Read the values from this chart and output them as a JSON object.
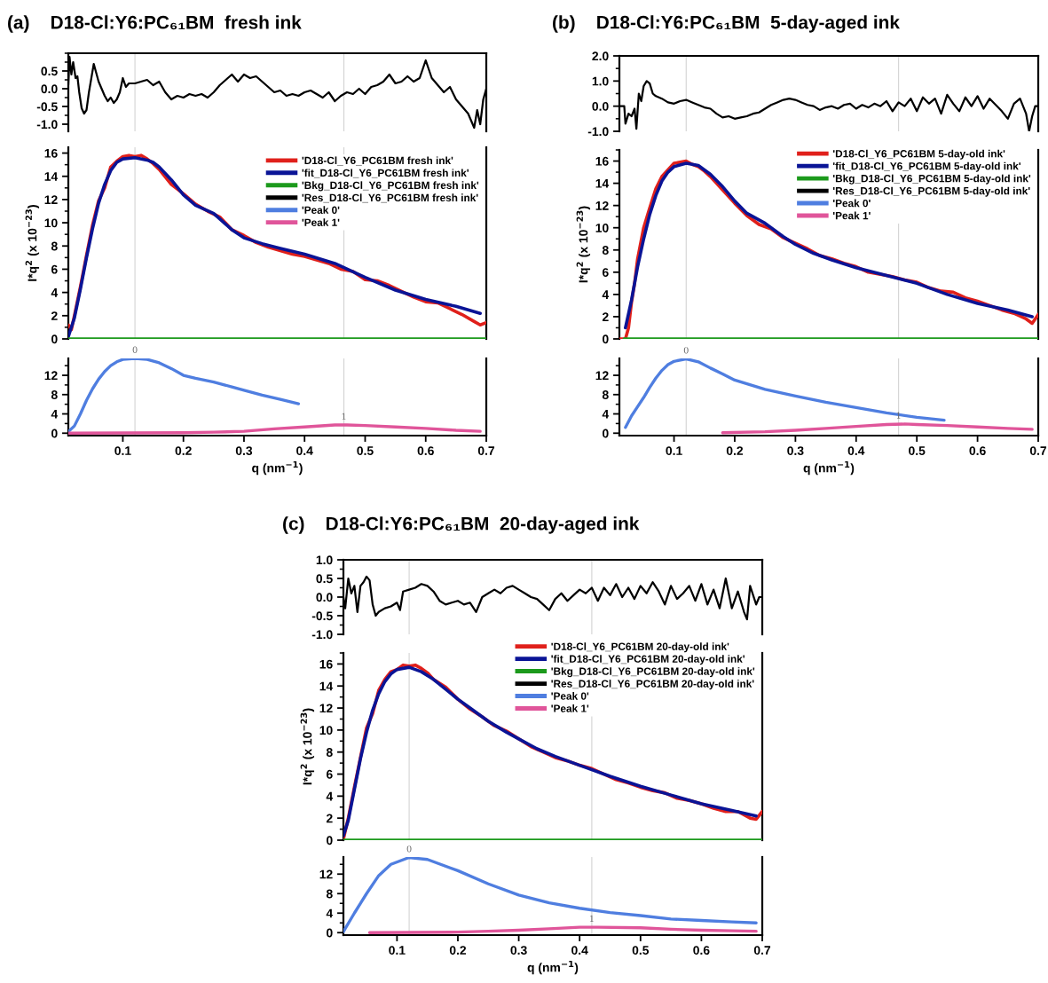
{
  "chart_data": [
    {
      "type": "line",
      "title": "(a)    D18-Cl:Y6:PC₆₁BM  fresh ink",
      "legend": "bottom right",
      "xlim": [
        0.01,
        0.7
      ],
      "ylim": [
        -1.2,
        1.0
      ],
      "yticks": [
        {
          "value": -1.0,
          "label": "-1.0"
        },
        {
          "value": -0.5,
          "label": "-0.5"
        },
        {
          "value": 0,
          "label": "0.0"
        },
        {
          "value": 0.5,
          "label": "0.5"
        }
      ],
      "tick_labels": "y",
      "grid": false,
      "ref_lines": [
        {
          "axis": "x",
          "value": 0.12,
          "color": "#cccccc"
        },
        {
          "axis": "x",
          "value": 0.465,
          "color": "#cccccc"
        }
      ],
      "series": [
        {
          "name": "'Res_D18-Cl_Y6_PC61BM fresh ink'",
          "color": "#000000",
          "x": [
            0.01,
            0.012,
            0.015,
            0.018,
            0.022,
            0.025,
            0.028,
            0.032,
            0.036,
            0.04,
            0.044,
            0.048,
            0.052,
            0.056,
            0.06,
            0.065,
            0.07,
            0.075,
            0.08,
            0.085,
            0.09,
            0.095,
            0.1,
            0.105,
            0.11,
            0.12,
            0.13,
            0.14,
            0.15,
            0.16,
            0.17,
            0.18,
            0.19,
            0.2,
            0.21,
            0.22,
            0.23,
            0.24,
            0.25,
            0.26,
            0.27,
            0.28,
            0.29,
            0.3,
            0.31,
            0.32,
            0.33,
            0.34,
            0.35,
            0.36,
            0.37,
            0.38,
            0.39,
            0.4,
            0.41,
            0.42,
            0.43,
            0.44,
            0.45,
            0.46,
            0.47,
            0.48,
            0.49,
            0.5,
            0.51,
            0.52,
            0.53,
            0.54,
            0.55,
            0.56,
            0.57,
            0.58,
            0.59,
            0.6,
            0.61,
            0.62,
            0.63,
            0.64,
            0.65,
            0.66,
            0.67,
            0.68,
            0.685,
            0.69,
            0.695,
            0.7
          ],
          "values": [
            0.1,
            0.9,
            0.4,
            0.75,
            0.3,
            0.35,
            -0.1,
            -0.55,
            -0.7,
            -0.6,
            -0.1,
            0.3,
            0.7,
            0.45,
            0.2,
            0.0,
            -0.2,
            -0.35,
            -0.25,
            -0.4,
            -0.3,
            -0.1,
            0.3,
            0.05,
            0.15,
            0.15,
            0.2,
            0.25,
            0.1,
            0.2,
            -0.1,
            -0.3,
            -0.2,
            -0.25,
            -0.15,
            -0.2,
            -0.15,
            -0.25,
            -0.1,
            0.1,
            0.25,
            0.4,
            0.2,
            0.4,
            0.3,
            0.35,
            0.2,
            0.05,
            -0.1,
            -0.05,
            -0.2,
            -0.15,
            -0.2,
            -0.1,
            -0.05,
            -0.15,
            -0.25,
            -0.1,
            -0.35,
            -0.2,
            -0.1,
            -0.15,
            0.0,
            -0.15,
            0.05,
            0.1,
            0.2,
            0.4,
            0.15,
            0.2,
            0.35,
            0.2,
            0.3,
            0.8,
            0.3,
            0.1,
            -0.1,
            0.05,
            -0.3,
            -0.5,
            -0.7,
            -1.1,
            -0.6,
            -1.0,
            -0.3,
            0.0
          ]
        }
      ]
    },
    {
      "type": "line",
      "ylabel": "I*q$^{2}$ (x 10$^{−23}$)",
      "xlim": [
        0.01,
        0.7
      ],
      "ylim": [
        0,
        16.5
      ],
      "yticks": [
        0,
        2,
        4,
        6,
        8,
        10,
        12,
        14,
        16
      ],
      "tick_labels": "y",
      "grid": false,
      "legend": "top right",
      "ref_lines": [
        {
          "axis": "x",
          "value": 0.12,
          "color": "#cccccc"
        },
        {
          "axis": "x",
          "value": 0.465,
          "color": "#cccccc"
        }
      ],
      "series": [
        {
          "name": "'D18-Cl_Y6_PC61BM fresh ink'",
          "color": "#e0201b",
          "x": [
            0.01,
            0.015,
            0.02,
            0.03,
            0.04,
            0.05,
            0.06,
            0.07,
            0.08,
            0.09,
            0.1,
            0.11,
            0.12,
            0.13,
            0.14,
            0.15,
            0.16,
            0.18,
            0.2,
            0.22,
            0.24,
            0.26,
            0.28,
            0.3,
            0.32,
            0.34,
            0.36,
            0.38,
            0.4,
            0.42,
            0.44,
            0.46,
            0.48,
            0.5,
            0.52,
            0.54,
            0.56,
            0.58,
            0.6,
            0.62,
            0.64,
            0.66,
            0.68,
            0.69,
            0.7
          ],
          "values": [
            1.2,
            0.8,
            2.0,
            4.5,
            7.2,
            9.8,
            11.9,
            13.0,
            14.8,
            15.3,
            15.7,
            15.8,
            15.7,
            15.8,
            15.5,
            15.1,
            14.6,
            13.3,
            12.5,
            11.6,
            11.0,
            10.5,
            9.4,
            8.9,
            8.3,
            7.9,
            7.6,
            7.3,
            7.1,
            6.8,
            6.5,
            6.0,
            5.8,
            5.1,
            5.0,
            4.6,
            4.1,
            3.6,
            3.2,
            3.1,
            2.6,
            2.1,
            1.5,
            1.2,
            1.4
          ]
        },
        {
          "name": "'fit_D18-Cl_Y6_PC61BM fresh ink'",
          "color": "#0a1496",
          "x": [
            0.01,
            0.02,
            0.03,
            0.04,
            0.05,
            0.06,
            0.07,
            0.08,
            0.09,
            0.1,
            0.12,
            0.14,
            0.15,
            0.16,
            0.18,
            0.2,
            0.22,
            0.25,
            0.28,
            0.3,
            0.33,
            0.36,
            0.4,
            0.45,
            0.5,
            0.55,
            0.6,
            0.65,
            0.69
          ],
          "values": [
            0.2,
            1.8,
            4.3,
            7.0,
            9.5,
            11.7,
            13.3,
            14.5,
            15.2,
            15.5,
            15.6,
            15.4,
            15.2,
            14.8,
            13.7,
            12.4,
            11.5,
            10.8,
            9.4,
            8.7,
            8.2,
            7.8,
            7.3,
            6.5,
            5.3,
            4.2,
            3.4,
            2.8,
            2.2
          ]
        },
        {
          "name": "'Bkg_D18-Cl_Y6_PC61BM fresh ink'",
          "color": "#1c9a1c",
          "x": [
            0.01,
            0.7
          ],
          "values": [
            0,
            0
          ]
        }
      ]
    },
    {
      "type": "line",
      "xlabel": "q (nm$^{−1}$)",
      "xlim": [
        0.01,
        0.7
      ],
      "ylim": [
        -0.5,
        15.5
      ],
      "xticks": [
        0.1,
        0.2,
        0.3,
        0.4,
        0.5,
        0.6,
        0.7
      ],
      "yticks": [
        0,
        4,
        8,
        12
      ],
      "grid": false,
      "legend": "top right",
      "annotations": [
        {
          "text": "0",
          "x": 0.12,
          "y": 15.5
        },
        {
          "text": "1",
          "x": 0.465,
          "y": 1.7
        }
      ],
      "ref_lines": [
        {
          "axis": "x",
          "value": 0.12,
          "color": "#cccccc"
        },
        {
          "axis": "x",
          "value": 0.465,
          "color": "#cccccc"
        }
      ],
      "series": [
        {
          "name": "'Peak 0'",
          "color": "#4f7ee0",
          "x": [
            0.01,
            0.02,
            0.03,
            0.04,
            0.05,
            0.06,
            0.07,
            0.08,
            0.09,
            0.1,
            0.12,
            0.14,
            0.16,
            0.18,
            0.2,
            0.22,
            0.25,
            0.28,
            0.3,
            0.33,
            0.36,
            0.39
          ],
          "values": [
            0.3,
            1.5,
            4.0,
            6.8,
            9.2,
            11.2,
            12.8,
            14.0,
            14.8,
            15.3,
            15.5,
            15.3,
            14.6,
            13.4,
            12.0,
            11.4,
            10.6,
            9.6,
            8.9,
            7.9,
            7.0,
            6.1
          ]
        },
        {
          "name": "'Peak 1'",
          "color": "#e0559a",
          "x": [
            0.01,
            0.2,
            0.25,
            0.3,
            0.35,
            0.4,
            0.45,
            0.47,
            0.5,
            0.55,
            0.6,
            0.65,
            0.69
          ],
          "values": [
            0,
            0.1,
            0.2,
            0.4,
            0.9,
            1.3,
            1.7,
            1.7,
            1.6,
            1.3,
            1.0,
            0.6,
            0.4
          ]
        }
      ]
    },
    {
      "type": "line",
      "title": "(b)    D18-Cl:Y6:PC₆₁BM  5-day-aged ink",
      "legend": "bottom right",
      "xlim": [
        0.01,
        0.7
      ],
      "ylim": [
        -1.0,
        2.0
      ],
      "yticks": [
        {
          "value": -1.0,
          "label": "-1.0"
        },
        {
          "value": 0,
          "label": "0.0"
        },
        {
          "value": 1.0,
          "label": "1.0"
        },
        {
          "value": 2.0,
          "label": "2.0"
        }
      ],
      "tick_labels": "y",
      "grid": false,
      "ref_lines": [
        {
          "axis": "x",
          "value": 0.12,
          "color": "#cccccc"
        },
        {
          "axis": "x",
          "value": 0.47,
          "color": "#cccccc"
        }
      ],
      "series": [
        {
          "name": "'Res_D18-Cl_Y6_PC61BM 5-day-old ink'",
          "color": "#000000",
          "x": [
            0.01,
            0.018,
            0.02,
            0.025,
            0.03,
            0.035,
            0.038,
            0.042,
            0.046,
            0.05,
            0.055,
            0.06,
            0.065,
            0.07,
            0.08,
            0.09,
            0.1,
            0.11,
            0.12,
            0.13,
            0.14,
            0.15,
            0.16,
            0.17,
            0.18,
            0.19,
            0.2,
            0.21,
            0.22,
            0.23,
            0.24,
            0.25,
            0.26,
            0.27,
            0.28,
            0.29,
            0.3,
            0.31,
            0.32,
            0.33,
            0.34,
            0.35,
            0.36,
            0.37,
            0.38,
            0.39,
            0.4,
            0.41,
            0.42,
            0.43,
            0.44,
            0.45,
            0.46,
            0.47,
            0.48,
            0.49,
            0.5,
            0.51,
            0.52,
            0.53,
            0.54,
            0.55,
            0.56,
            0.57,
            0.58,
            0.59,
            0.6,
            0.61,
            0.62,
            0.63,
            0.64,
            0.65,
            0.66,
            0.67,
            0.68,
            0.685,
            0.69,
            0.695,
            0.7
          ],
          "values": [
            0.0,
            0.0,
            -0.7,
            -0.3,
            -0.4,
            -0.1,
            -0.9,
            0.5,
            0.2,
            0.8,
            1.0,
            0.9,
            0.5,
            0.4,
            0.3,
            0.15,
            0.1,
            0.2,
            0.25,
            0.15,
            0.05,
            -0.05,
            -0.1,
            -0.3,
            -0.45,
            -0.4,
            -0.5,
            -0.45,
            -0.4,
            -0.3,
            -0.25,
            -0.1,
            0.05,
            0.15,
            0.25,
            0.3,
            0.25,
            0.15,
            0.05,
            0.0,
            -0.15,
            -0.05,
            0.0,
            -0.1,
            0.05,
            0.1,
            -0.1,
            0.05,
            -0.05,
            0.1,
            0.0,
            0.2,
            -0.2,
            0.15,
            0.0,
            0.3,
            -0.2,
            0.35,
            0.1,
            0.3,
            -0.3,
            0.45,
            0.1,
            -0.2,
            0.35,
            0.0,
            0.4,
            -0.1,
            0.3,
            0.05,
            -0.2,
            -0.5,
            0.1,
            0.3,
            -0.3,
            -1.0,
            -0.4,
            0.0,
            0.0
          ]
        }
      ]
    },
    {
      "type": "line",
      "ylabel": "I*q$^{2}$ (x 10$^{−23}$)",
      "xlim": [
        0.01,
        0.7
      ],
      "ylim": [
        0,
        17
      ],
      "yticks": [
        0,
        2,
        4,
        6,
        8,
        10,
        12,
        14,
        16
      ],
      "tick_labels": "y",
      "grid": false,
      "legend": "top right",
      "ref_lines": [
        {
          "axis": "x",
          "value": 0.12,
          "color": "#cccccc"
        },
        {
          "axis": "x",
          "value": 0.47,
          "color": "#cccccc"
        }
      ],
      "series": [
        {
          "name": "'D18-Cl_Y6_PC61BM 5-day-old ink'",
          "color": "#e0201b",
          "x": [
            0.01,
            0.02,
            0.025,
            0.03,
            0.035,
            0.04,
            0.05,
            0.06,
            0.07,
            0.08,
            0.09,
            0.1,
            0.11,
            0.12,
            0.13,
            0.14,
            0.15,
            0.16,
            0.18,
            0.2,
            0.22,
            0.24,
            0.26,
            0.28,
            0.3,
            0.32,
            0.34,
            0.36,
            0.38,
            0.4,
            0.42,
            0.44,
            0.46,
            0.48,
            0.5,
            0.52,
            0.54,
            0.56,
            0.58,
            0.6,
            0.62,
            0.64,
            0.66,
            0.68,
            0.69,
            0.7
          ],
          "values": [
            0,
            0,
            1.0,
            3.3,
            5.0,
            7.2,
            10.0,
            11.8,
            13.5,
            14.6,
            15.2,
            15.8,
            15.9,
            16.0,
            15.7,
            15.5,
            15.1,
            14.6,
            13.4,
            12.2,
            11.1,
            10.3,
            9.9,
            9.1,
            8.6,
            8.1,
            7.5,
            7.2,
            6.8,
            6.5,
            6.0,
            5.8,
            5.6,
            5.3,
            5.1,
            4.6,
            4.3,
            4.2,
            3.7,
            3.4,
            3.0,
            2.6,
            2.3,
            1.8,
            1.4,
            2.2
          ]
        },
        {
          "name": "'fit_D18-Cl_Y6_PC61BM 5-day-old ink'",
          "color": "#0a1496",
          "x": [
            0.02,
            0.03,
            0.04,
            0.05,
            0.06,
            0.07,
            0.08,
            0.09,
            0.1,
            0.12,
            0.14,
            0.16,
            0.18,
            0.2,
            0.22,
            0.25,
            0.28,
            0.3,
            0.33,
            0.36,
            0.4,
            0.45,
            0.5,
            0.55,
            0.6,
            0.65,
            0.69
          ],
          "values": [
            1.0,
            3.5,
            6.5,
            9.0,
            11.2,
            12.9,
            14.2,
            15.0,
            15.5,
            15.8,
            15.6,
            14.8,
            13.7,
            12.4,
            11.3,
            10.4,
            9.2,
            8.5,
            7.7,
            7.1,
            6.4,
            5.7,
            5.0,
            4.0,
            3.2,
            2.6,
            2.0
          ]
        },
        {
          "name": "'Bkg_D18-Cl_Y6_PC61BM 5-day-old ink'",
          "color": "#1c9a1c",
          "x": [
            0.018,
            0.7
          ],
          "values": [
            0,
            0
          ]
        }
      ]
    },
    {
      "type": "line",
      "xlabel": "q (nm$^{−1}$)",
      "xlim": [
        0.01,
        0.7
      ],
      "ylim": [
        -0.5,
        15.5
      ],
      "xticks": [
        0.1,
        0.2,
        0.3,
        0.4,
        0.5,
        0.6,
        0.7
      ],
      "yticks": [
        0,
        4,
        8,
        12
      ],
      "grid": false,
      "legend": "top right",
      "annotations": [
        {
          "text": "0",
          "x": 0.12,
          "y": 15.4
        },
        {
          "text": "1",
          "x": 0.47,
          "y": 1.9
        }
      ],
      "ref_lines": [
        {
          "axis": "x",
          "value": 0.12,
          "color": "#cccccc"
        },
        {
          "axis": "x",
          "value": 0.47,
          "color": "#cccccc"
        }
      ],
      "series": [
        {
          "name": "'Peak 0'",
          "color": "#4f7ee0",
          "x": [
            0.02,
            0.03,
            0.04,
            0.05,
            0.06,
            0.07,
            0.08,
            0.09,
            0.1,
            0.12,
            0.14,
            0.16,
            0.18,
            0.2,
            0.25,
            0.3,
            0.35,
            0.4,
            0.45,
            0.5,
            0.545
          ],
          "values": [
            1.2,
            3.6,
            5.5,
            7.4,
            9.5,
            11.4,
            13.0,
            14.2,
            14.9,
            15.4,
            14.8,
            13.5,
            12.3,
            11.0,
            9.1,
            7.7,
            6.4,
            5.3,
            4.2,
            3.3,
            2.7
          ]
        },
        {
          "name": "'Peak 1'",
          "color": "#e0559a",
          "x": [
            0.18,
            0.25,
            0.3,
            0.35,
            0.4,
            0.45,
            0.48,
            0.5,
            0.55,
            0.6,
            0.65,
            0.69
          ],
          "values": [
            0.1,
            0.3,
            0.6,
            1.0,
            1.4,
            1.8,
            1.9,
            1.8,
            1.6,
            1.3,
            1.0,
            0.8
          ]
        }
      ]
    },
    {
      "type": "line",
      "title": "(c)    D18-Cl:Y6:PC₆₁BM  20-day-aged ink",
      "legend": "bottom right",
      "xlim": [
        0.012,
        0.7
      ],
      "ylim": [
        -1.0,
        1.0
      ],
      "yticks": [
        {
          "value": -1.0,
          "label": "-1.0"
        },
        {
          "value": -0.5,
          "label": "-0.5"
        },
        {
          "value": 0,
          "label": "0.0"
        },
        {
          "value": 0.5,
          "label": "0.5"
        },
        {
          "value": 1.0,
          "label": "1.0"
        }
      ],
      "tick_labels": "y",
      "grid": false,
      "ref_lines": [
        {
          "axis": "x",
          "value": 0.12,
          "color": "#cccccc"
        },
        {
          "axis": "x",
          "value": 0.42,
          "color": "#cccccc"
        }
      ],
      "series": [
        {
          "name": "'Res_D18-Cl_Y6_PC61BM 20-day-old ink'",
          "color": "#000000",
          "x": [
            0.012,
            0.015,
            0.02,
            0.025,
            0.03,
            0.035,
            0.04,
            0.045,
            0.05,
            0.055,
            0.06,
            0.065,
            0.07,
            0.08,
            0.09,
            0.1,
            0.105,
            0.11,
            0.12,
            0.13,
            0.14,
            0.15,
            0.16,
            0.17,
            0.18,
            0.19,
            0.2,
            0.21,
            0.22,
            0.23,
            0.24,
            0.25,
            0.26,
            0.27,
            0.28,
            0.29,
            0.3,
            0.31,
            0.32,
            0.33,
            0.34,
            0.35,
            0.36,
            0.37,
            0.38,
            0.39,
            0.4,
            0.41,
            0.42,
            0.43,
            0.44,
            0.45,
            0.46,
            0.47,
            0.48,
            0.49,
            0.5,
            0.51,
            0.52,
            0.53,
            0.54,
            0.55,
            0.56,
            0.57,
            0.58,
            0.59,
            0.6,
            0.61,
            0.62,
            0.63,
            0.64,
            0.65,
            0.66,
            0.67,
            0.675,
            0.68,
            0.69,
            0.695,
            0.7
          ],
          "values": [
            0.0,
            -0.3,
            0.5,
            0.1,
            0.3,
            -0.4,
            0.3,
            0.4,
            0.55,
            0.45,
            -0.2,
            -0.5,
            -0.4,
            -0.3,
            -0.25,
            -0.15,
            -0.35,
            0.15,
            0.2,
            0.25,
            0.35,
            0.3,
            0.15,
            -0.1,
            -0.2,
            -0.15,
            -0.1,
            -0.2,
            -0.15,
            -0.4,
            0.0,
            0.1,
            0.2,
            0.1,
            0.25,
            0.3,
            0.2,
            0.1,
            0.0,
            -0.05,
            -0.2,
            -0.35,
            -0.05,
            0.1,
            -0.1,
            0.05,
            0.2,
            0.1,
            0.25,
            -0.1,
            0.25,
            0.05,
            0.35,
            0.0,
            0.25,
            -0.05,
            0.3,
            0.1,
            0.4,
            0.15,
            -0.2,
            0.3,
            -0.05,
            0.1,
            0.3,
            -0.1,
            0.35,
            -0.2,
            0.2,
            -0.3,
            0.5,
            -0.3,
            0.15,
            -0.4,
            -0.6,
            0.3,
            -0.2,
            0.0,
            0.0
          ]
        }
      ]
    },
    {
      "type": "line",
      "ylabel": "I*q$^{2}$ (x 10$^{−23}$)",
      "xlim": [
        0.012,
        0.7
      ],
      "ylim": [
        0,
        17
      ],
      "yticks": [
        0,
        2,
        4,
        6,
        8,
        10,
        12,
        14,
        16
      ],
      "tick_labels": "y",
      "grid": false,
      "legend": "top right",
      "ref_lines": [
        {
          "axis": "x",
          "value": 0.12,
          "color": "#cccccc"
        },
        {
          "axis": "x",
          "value": 0.42,
          "color": "#cccccc"
        }
      ],
      "series": [
        {
          "name": "'D18-Cl_Y6_PC61BM 20-day-old ink'",
          "color": "#e0201b",
          "x": [
            0.012,
            0.02,
            0.03,
            0.04,
            0.05,
            0.06,
            0.07,
            0.08,
            0.09,
            0.1,
            0.11,
            0.12,
            0.13,
            0.14,
            0.15,
            0.16,
            0.18,
            0.2,
            0.22,
            0.24,
            0.26,
            0.28,
            0.3,
            0.32,
            0.34,
            0.36,
            0.38,
            0.4,
            0.42,
            0.44,
            0.46,
            0.48,
            0.5,
            0.52,
            0.54,
            0.56,
            0.58,
            0.6,
            0.62,
            0.64,
            0.66,
            0.68,
            0.69,
            0.7
          ],
          "values": [
            0.1,
            2.0,
            4.8,
            7.5,
            10.2,
            11.5,
            13.6,
            14.6,
            15.3,
            15.5,
            15.9,
            15.8,
            15.9,
            15.6,
            15.2,
            14.6,
            13.9,
            12.8,
            11.9,
            11.2,
            10.4,
            9.9,
            9.2,
            8.5,
            8.0,
            7.5,
            7.2,
            6.8,
            6.5,
            6.0,
            5.5,
            5.2,
            4.8,
            4.5,
            4.3,
            3.8,
            3.6,
            3.3,
            2.9,
            2.6,
            2.6,
            2.0,
            1.9,
            2.6
          ]
        },
        {
          "name": "'fit_D18-Cl_Y6_PC61BM 20-day-old ink'",
          "color": "#0a1496",
          "x": [
            0.012,
            0.02,
            0.03,
            0.04,
            0.05,
            0.06,
            0.07,
            0.08,
            0.09,
            0.1,
            0.12,
            0.14,
            0.16,
            0.18,
            0.2,
            0.22,
            0.25,
            0.28,
            0.3,
            0.33,
            0.36,
            0.4,
            0.45,
            0.5,
            0.55,
            0.6,
            0.65,
            0.69
          ],
          "values": [
            0.4,
            1.8,
            4.6,
            7.4,
            9.8,
            11.8,
            13.3,
            14.4,
            15.1,
            15.5,
            15.7,
            15.3,
            14.6,
            13.7,
            12.8,
            12.0,
            10.8,
            9.8,
            9.2,
            8.3,
            7.6,
            6.8,
            5.8,
            4.9,
            4.1,
            3.3,
            2.7,
            2.2
          ]
        },
        {
          "name": "'Bkg_D18-Cl_Y6_PC61BM 20-day-old ink'",
          "color": "#1c9a1c",
          "x": [
            0.012,
            0.7
          ],
          "values": [
            0,
            0
          ]
        }
      ]
    },
    {
      "type": "line",
      "xlabel": "q (nm$^{−1}$)",
      "xlim": [
        0.012,
        0.7
      ],
      "ylim": [
        -0.5,
        15.5
      ],
      "xticks": [
        0.1,
        0.2,
        0.3,
        0.4,
        0.5,
        0.6,
        0.7
      ],
      "yticks": [
        0,
        4,
        8,
        12
      ],
      "grid": false,
      "legend": "top right",
      "annotations": [
        {
          "text": "0",
          "x": 0.12,
          "y": 15.4
        },
        {
          "text": "1",
          "x": 0.42,
          "y": 1.1
        }
      ],
      "ref_lines": [
        {
          "axis": "x",
          "value": 0.12,
          "color": "#cccccc"
        },
        {
          "axis": "x",
          "value": 0.42,
          "color": "#cccccc"
        }
      ],
      "series": [
        {
          "name": "'Peak 0'",
          "color": "#4f7ee0",
          "x": [
            0.012,
            0.03,
            0.05,
            0.07,
            0.09,
            0.12,
            0.15,
            0.2,
            0.25,
            0.3,
            0.35,
            0.4,
            0.45,
            0.5,
            0.55,
            0.6,
            0.65,
            0.69
          ],
          "values": [
            0.2,
            4.0,
            8.0,
            11.7,
            14.0,
            15.4,
            15.0,
            12.7,
            10.0,
            7.7,
            6.1,
            5.0,
            4.1,
            3.5,
            2.8,
            2.5,
            2.2,
            2.0
          ]
        },
        {
          "name": "'Peak 1'",
          "color": "#e0559a",
          "x": [
            0.055,
            0.2,
            0.25,
            0.3,
            0.35,
            0.4,
            0.43,
            0.5,
            0.55,
            0.6,
            0.65,
            0.69
          ],
          "values": [
            0,
            0.1,
            0.3,
            0.5,
            0.8,
            1.1,
            1.1,
            1.0,
            0.7,
            0.5,
            0.4,
            0.3
          ]
        }
      ]
    }
  ]
}
